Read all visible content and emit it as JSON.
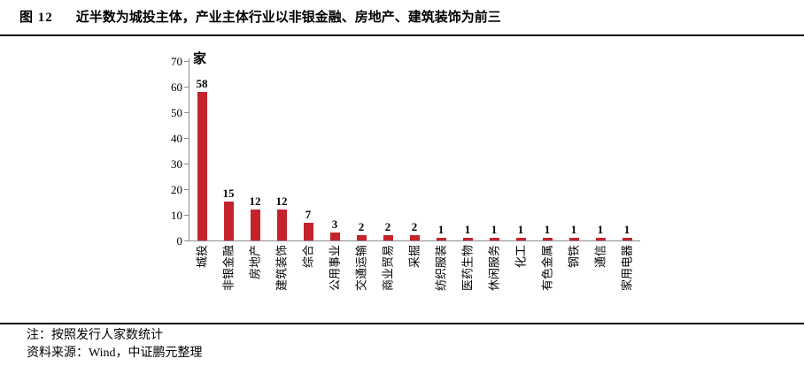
{
  "title": {
    "number": "图 12",
    "caption": "近半数为城投主体，产业主体行业以非银金融、房地产、建筑装饰为前三"
  },
  "chart_data": {
    "type": "bar",
    "title": "",
    "unit_label": "家",
    "categories": [
      "城投",
      "非银金融",
      "房地产",
      "建筑装饰",
      "综合",
      "公用事业",
      "交通运输",
      "商业贸易",
      "采掘",
      "纺织服装",
      "医药生物",
      "休闲服务",
      "化工",
      "有色金属",
      "钢铁",
      "通信",
      "家用电器"
    ],
    "values": [
      58,
      15,
      12,
      12,
      7,
      3,
      2,
      2,
      2,
      1,
      1,
      1,
      1,
      1,
      1,
      1,
      1
    ],
    "xlabel": "",
    "ylabel": "家",
    "ylim": [
      0,
      70
    ],
    "yticks": [
      0,
      10,
      20,
      30,
      40,
      50,
      60,
      70
    ],
    "grid": false,
    "legend": "none",
    "value_labels": true,
    "bar_color": "#c4232c",
    "axis_color": "#8c8c8c",
    "text_color": "#000000"
  },
  "notes": {
    "note": "注：按照发行人家数统计",
    "source": "资料来源：Wind，中证鹏元整理"
  }
}
